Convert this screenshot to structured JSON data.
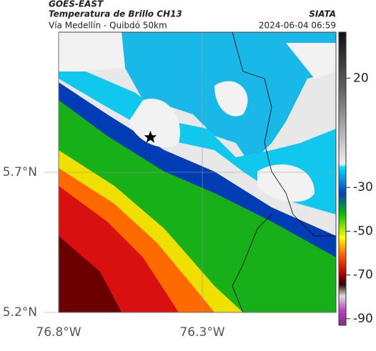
{
  "header": {
    "title": "GOES-EAST",
    "subtitle": "Temperatura de Brillo CH13",
    "region": "Vía Medellín - Quibdó 50km",
    "source": "SIATA",
    "datetime": "2024-06-04 06:59"
  },
  "chart_data": {
    "type": "map",
    "xlim": [
      -76.8,
      -75.835
    ],
    "ylim": [
      5.2,
      6.2
    ],
    "xticks": [
      {
        "value": -76.8,
        "label": "76.8°W"
      },
      {
        "value": -76.3,
        "label": "76.3°W"
      }
    ],
    "yticks": [
      {
        "value": 5.7,
        "label": "5.7°N"
      },
      {
        "value": 5.2,
        "label": "5.2°N"
      }
    ],
    "colorbar": {
      "lim": [
        -93,
        41
      ],
      "ticks": [
        20,
        -30,
        -50,
        -70,
        -90
      ]
    },
    "grid": true
  }
}
